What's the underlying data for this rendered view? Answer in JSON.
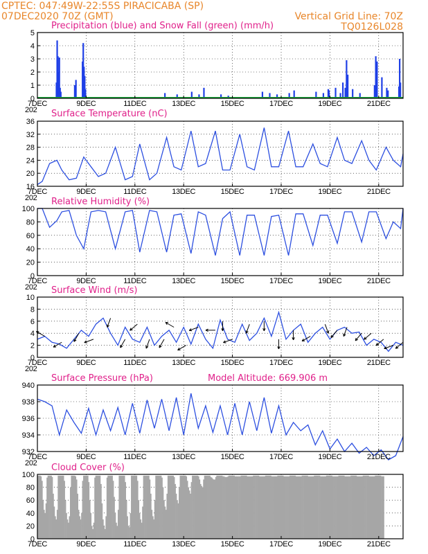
{
  "header": {
    "line1_left": "CPTEC:   047:49W-22:55S   PIRACICABA (SP)",
    "line2_left": "07DEC2020 70Z (GMT)",
    "line1_right": "Vertical Grid Line: 70Z",
    "line2_right": "TQ0126L028"
  },
  "colors": {
    "header": "#e8862a",
    "title": "#e0208a",
    "line": "#2c4fe0",
    "precip": "#1f3fe6",
    "snow": "#1aa83a",
    "cloud": "#a6a6a6",
    "wind_arrow": "#000000"
  },
  "x_axis": {
    "ticks": [
      "7DEC",
      "9DEC",
      "11DEC",
      "13DEC",
      "15DEC",
      "17DEC",
      "19DEC",
      "21DEC"
    ],
    "tick_days": [
      7,
      9,
      11,
      13,
      15,
      17,
      19,
      21
    ],
    "range_days": [
      7,
      22
    ],
    "tick_labels_under_first": [
      "202",
      "202",
      "202",
      "202",
      "202"
    ]
  },
  "chart_data": [
    {
      "type": "bar",
      "title": "Precipitation (blue) and Snow Fall (green) (mm/h)",
      "ylim": [
        0,
        5
      ],
      "yticks": [
        0,
        1,
        2,
        3,
        4,
        5
      ],
      "series": [
        {
          "name": "Precipitation",
          "x_day": [
            7.75,
            7.78,
            7.81,
            7.84,
            7.87,
            7.9,
            7.93,
            8.5,
            8.55,
            8.82,
            8.85,
            8.88,
            8.91,
            8.94,
            12.2,
            12.7,
            13.3,
            13.6,
            13.8,
            14.5,
            14.8,
            16.2,
            16.5,
            16.8,
            17.3,
            17.5,
            18.4,
            18.7,
            18.9,
            18.93,
            19.2,
            19.4,
            19.5,
            19.6,
            19.65,
            19.7,
            19.9,
            20.2,
            20.8,
            20.85,
            20.9,
            21.1,
            21.3,
            21.35,
            21.8,
            21.83,
            21.86
          ],
          "values": [
            1.2,
            4.4,
            3.2,
            2.0,
            3.1,
            0.8,
            0.5,
            1.0,
            1.4,
            2.8,
            4.2,
            2.4,
            1.7,
            0.7,
            0.4,
            0.3,
            0.5,
            0.3,
            0.8,
            0.3,
            0.2,
            0.5,
            0.4,
            0.3,
            0.4,
            0.6,
            0.5,
            0.4,
            0.7,
            0.6,
            0.8,
            0.4,
            1.2,
            0.8,
            2.9,
            1.8,
            0.7,
            0.4,
            1.0,
            3.2,
            2.8,
            1.6,
            0.8,
            0.6,
            0.9,
            3.0,
            1.2
          ]
        },
        {
          "name": "Snow Fall",
          "values_constant": 0
        }
      ]
    },
    {
      "type": "line",
      "title": "Surface Temperature (nC)",
      "ylim": [
        16,
        36
      ],
      "yticks": [
        16,
        20,
        24,
        28,
        32,
        36
      ],
      "x_day": [
        7.0,
        7.2,
        7.5,
        7.8,
        8.0,
        8.3,
        8.6,
        8.9,
        9.2,
        9.5,
        9.8,
        10.2,
        10.6,
        10.9,
        11.2,
        11.6,
        11.9,
        12.3,
        12.6,
        12.9,
        13.3,
        13.6,
        13.9,
        14.3,
        14.6,
        14.9,
        15.3,
        15.6,
        15.9,
        16.3,
        16.6,
        16.9,
        17.3,
        17.6,
        17.9,
        18.3,
        18.6,
        18.9,
        19.3,
        19.6,
        19.9,
        20.3,
        20.6,
        20.9,
        21.3,
        21.6,
        21.9,
        22.0
      ],
      "values": [
        16.5,
        17.5,
        23,
        24,
        21,
        18,
        18.5,
        25,
        22,
        19,
        20,
        28,
        18,
        19,
        29,
        18,
        20,
        31,
        22,
        21,
        33,
        22,
        23,
        33,
        21,
        21,
        32,
        22,
        21,
        34,
        22,
        22,
        33,
        22,
        22,
        29,
        23,
        22,
        31,
        24,
        23,
        30,
        24,
        21,
        28,
        24,
        22,
        26
      ]
    },
    {
      "type": "line",
      "title": "Relative Humidity (%)",
      "ylim": [
        0,
        100
      ],
      "yticks": [
        0,
        20,
        40,
        60,
        80,
        100
      ],
      "x_day": [
        7.0,
        7.2,
        7.5,
        7.8,
        8.0,
        8.3,
        8.6,
        8.9,
        9.2,
        9.5,
        9.8,
        10.2,
        10.6,
        10.9,
        11.2,
        11.6,
        11.9,
        12.3,
        12.6,
        12.9,
        13.3,
        13.6,
        13.9,
        14.3,
        14.6,
        14.9,
        15.3,
        15.6,
        15.9,
        16.3,
        16.6,
        16.9,
        17.3,
        17.6,
        17.9,
        18.3,
        18.6,
        18.9,
        19.3,
        19.6,
        19.9,
        20.3,
        20.6,
        20.9,
        21.3,
        21.6,
        21.9,
        22.0
      ],
      "values": [
        100,
        100,
        72,
        82,
        95,
        97,
        60,
        40,
        95,
        97,
        95,
        40,
        95,
        97,
        35,
        97,
        95,
        35,
        90,
        92,
        33,
        95,
        90,
        30,
        85,
        95,
        30,
        90,
        90,
        30,
        88,
        90,
        30,
        92,
        92,
        45,
        90,
        90,
        48,
        95,
        95,
        50,
        95,
        95,
        55,
        80,
        70,
        100
      ]
    },
    {
      "type": "line",
      "title": "Surface Wind (m/s)",
      "ylim": [
        0,
        10
      ],
      "yticks": [
        0,
        2,
        4,
        6,
        8,
        10
      ],
      "x_day": [
        7.0,
        7.3,
        7.6,
        7.9,
        8.2,
        8.5,
        8.8,
        9.1,
        9.4,
        9.7,
        10.0,
        10.3,
        10.6,
        10.9,
        11.2,
        11.5,
        11.8,
        12.1,
        12.4,
        12.7,
        13.0,
        13.3,
        13.6,
        13.9,
        14.2,
        14.5,
        14.8,
        15.1,
        15.4,
        15.7,
        16.0,
        16.3,
        16.6,
        16.9,
        17.2,
        17.5,
        17.8,
        18.1,
        18.4,
        18.7,
        19.0,
        19.3,
        19.6,
        19.9,
        20.2,
        20.5,
        20.8,
        21.1,
        21.4,
        21.7,
        22.0
      ],
      "values": [
        3.0,
        3.5,
        2.5,
        2.2,
        1.5,
        3.0,
        4.5,
        3.5,
        5.5,
        6.5,
        4.0,
        2.0,
        5.0,
        3.0,
        2.5,
        5.0,
        2.0,
        3.5,
        4.5,
        2.5,
        5.0,
        2.2,
        5.5,
        3.0,
        1.5,
        6.2,
        3.0,
        2.5,
        5.5,
        2.8,
        4.0,
        6.5,
        3.5,
        7.5,
        3.0,
        4.5,
        5.5,
        2.5,
        4.0,
        5.0,
        3.0,
        4.5,
        5.0,
        4.0,
        4.2,
        2.0,
        3.0,
        2.5,
        1.0,
        2.5,
        2.0
      ],
      "arrows_x_day": [
        7.3,
        8.0,
        8.7,
        9.3,
        10.0,
        10.6,
        11.1,
        11.6,
        12.2,
        12.6,
        13.1,
        13.6,
        14.3,
        14.6,
        15.0,
        15.7,
        16.3,
        16.9,
        17.5,
        18.2,
        18.8,
        19.3,
        19.7,
        20.3,
        20.7,
        21.2,
        21.6,
        22.0
      ],
      "arrows_speed": [
        3.5,
        2.5,
        4.0,
        3.0,
        6.5,
        3.0,
        5.5,
        3.0,
        3.0,
        5.0,
        2.0,
        5.0,
        4.5,
        6.0,
        3.0,
        5.5,
        6.0,
        3.0,
        4.5,
        3.5,
        5.5,
        4.5,
        5.0,
        4.0,
        4.0,
        3.0,
        2.0,
        2.5
      ],
      "arrows_dir_deg": [
        300,
        240,
        210,
        250,
        200,
        210,
        230,
        200,
        210,
        300,
        240,
        250,
        270,
        180,
        250,
        200,
        180,
        180,
        180,
        240,
        160,
        220,
        200,
        220,
        230,
        230,
        250,
        230
      ]
    },
    {
      "type": "line",
      "title": "Surface Pressure (hPa)",
      "annotation": "Model Altitude: 669.906  m",
      "ylim": [
        932,
        940
      ],
      "yticks": [
        932,
        934,
        936,
        938,
        940
      ],
      "x_day": [
        7.0,
        7.3,
        7.6,
        7.9,
        8.2,
        8.5,
        8.8,
        9.1,
        9.4,
        9.7,
        10.0,
        10.3,
        10.6,
        10.9,
        11.2,
        11.5,
        11.8,
        12.1,
        12.4,
        12.7,
        13.0,
        13.3,
        13.6,
        13.9,
        14.2,
        14.5,
        14.8,
        15.1,
        15.4,
        15.7,
        16.0,
        16.3,
        16.6,
        16.9,
        17.2,
        17.5,
        17.8,
        18.1,
        18.4,
        18.7,
        19.0,
        19.3,
        19.6,
        19.9,
        20.2,
        20.5,
        20.8,
        21.1,
        21.4,
        21.7,
        22.0
      ],
      "values": [
        938.3,
        938.0,
        937.5,
        934.0,
        937.0,
        935.5,
        934.2,
        937.2,
        934.0,
        937.0,
        934.5,
        937.3,
        934.0,
        937.8,
        934.2,
        938.2,
        934.8,
        938.3,
        934.5,
        938.5,
        934.0,
        939.0,
        934.8,
        937.5,
        934.3,
        937.5,
        934.0,
        937.8,
        934.0,
        938.0,
        934.5,
        938.5,
        934.2,
        937.5,
        934.0,
        935.5,
        934.5,
        935.2,
        932.8,
        934.5,
        932.3,
        933.5,
        932.0,
        933.0,
        931.8,
        932.5,
        931.5,
        932.2,
        931.0,
        931.5,
        933.8
      ]
    },
    {
      "type": "bar",
      "title": "Cloud Cover (%)",
      "ylim": [
        0,
        100
      ],
      "yticks": [
        0,
        20,
        40,
        60,
        80,
        100
      ],
      "x_day_start": 7.0,
      "x_day_step": 0.0417,
      "values_pattern": "hourly",
      "values": [
        98,
        98,
        98,
        97,
        90,
        60,
        45,
        40,
        55,
        95,
        98,
        98,
        98,
        98,
        96,
        70,
        50,
        35,
        30,
        45,
        98,
        98,
        98,
        98,
        98,
        98,
        90,
        60,
        40,
        30,
        25,
        35,
        80,
        98,
        98,
        98,
        98,
        97,
        92,
        70,
        45,
        35,
        30,
        40,
        90,
        98,
        98,
        98,
        98,
        98,
        88,
        60,
        40,
        20,
        15,
        25,
        95,
        98,
        98,
        98,
        98,
        98,
        85,
        55,
        30,
        20,
        15,
        35,
        95,
        98,
        98,
        98,
        98,
        98,
        90,
        65,
        40,
        25,
        20,
        45,
        98,
        98,
        98,
        98,
        98,
        98,
        88,
        60,
        35,
        20,
        18,
        40,
        98,
        98,
        98,
        98,
        98,
        98,
        90,
        60,
        40,
        30,
        25,
        50,
        98,
        98,
        98,
        98,
        98,
        98,
        92,
        70,
        45,
        35,
        30,
        60,
        98,
        98,
        98,
        98,
        98,
        98,
        95,
        80,
        60,
        50,
        45,
        70,
        98,
        98,
        98,
        98,
        98,
        98,
        96,
        85,
        70,
        60,
        55,
        80,
        98,
        98,
        98,
        98,
        98,
        98,
        97,
        90,
        80,
        75,
        70,
        88,
        98,
        98,
        98,
        98,
        98,
        98,
        97,
        92,
        85,
        82,
        80,
        92,
        98,
        98,
        98,
        98,
        98,
        98,
        96,
        95,
        93,
        92,
        92,
        96,
        98,
        98,
        98,
        98,
        98,
        98,
        97,
        97,
        96,
        96,
        96,
        97,
        98,
        98,
        98,
        98,
        98,
        98,
        97,
        97,
        97,
        97,
        97,
        97,
        98,
        98,
        98,
        98,
        98,
        98,
        97,
        97,
        97,
        97,
        97,
        97,
        98,
        98,
        98,
        98,
        98,
        98,
        97,
        97,
        97,
        97,
        97,
        97,
        98,
        98,
        98,
        98,
        98,
        98,
        97,
        97,
        97,
        97,
        97,
        97,
        98,
        98,
        98,
        98,
        98,
        98,
        97,
        97,
        97,
        97,
        97,
        97,
        98,
        98,
        98,
        98,
        98,
        98,
        97,
        97,
        97,
        97,
        97,
        97,
        98,
        98,
        98,
        98,
        98,
        98,
        97,
        97,
        97,
        97,
        97,
        97,
        98,
        98,
        98,
        98,
        98,
        98,
        97,
        97,
        97,
        97,
        97,
        97,
        98,
        98,
        98,
        98,
        98,
        98,
        97,
        97,
        97,
        97,
        97,
        97,
        98,
        98,
        98,
        98,
        98,
        98,
        97,
        97,
        97,
        97,
        97,
        97,
        98,
        98,
        98,
        98,
        98,
        98,
        97,
        97,
        97,
        97,
        97,
        97,
        98,
        98,
        98,
        98,
        98,
        98,
        97,
        97,
        97,
        97,
        97,
        97,
        98,
        98,
        98,
        98,
        98,
        98,
        97,
        97,
        97
      ]
    }
  ]
}
